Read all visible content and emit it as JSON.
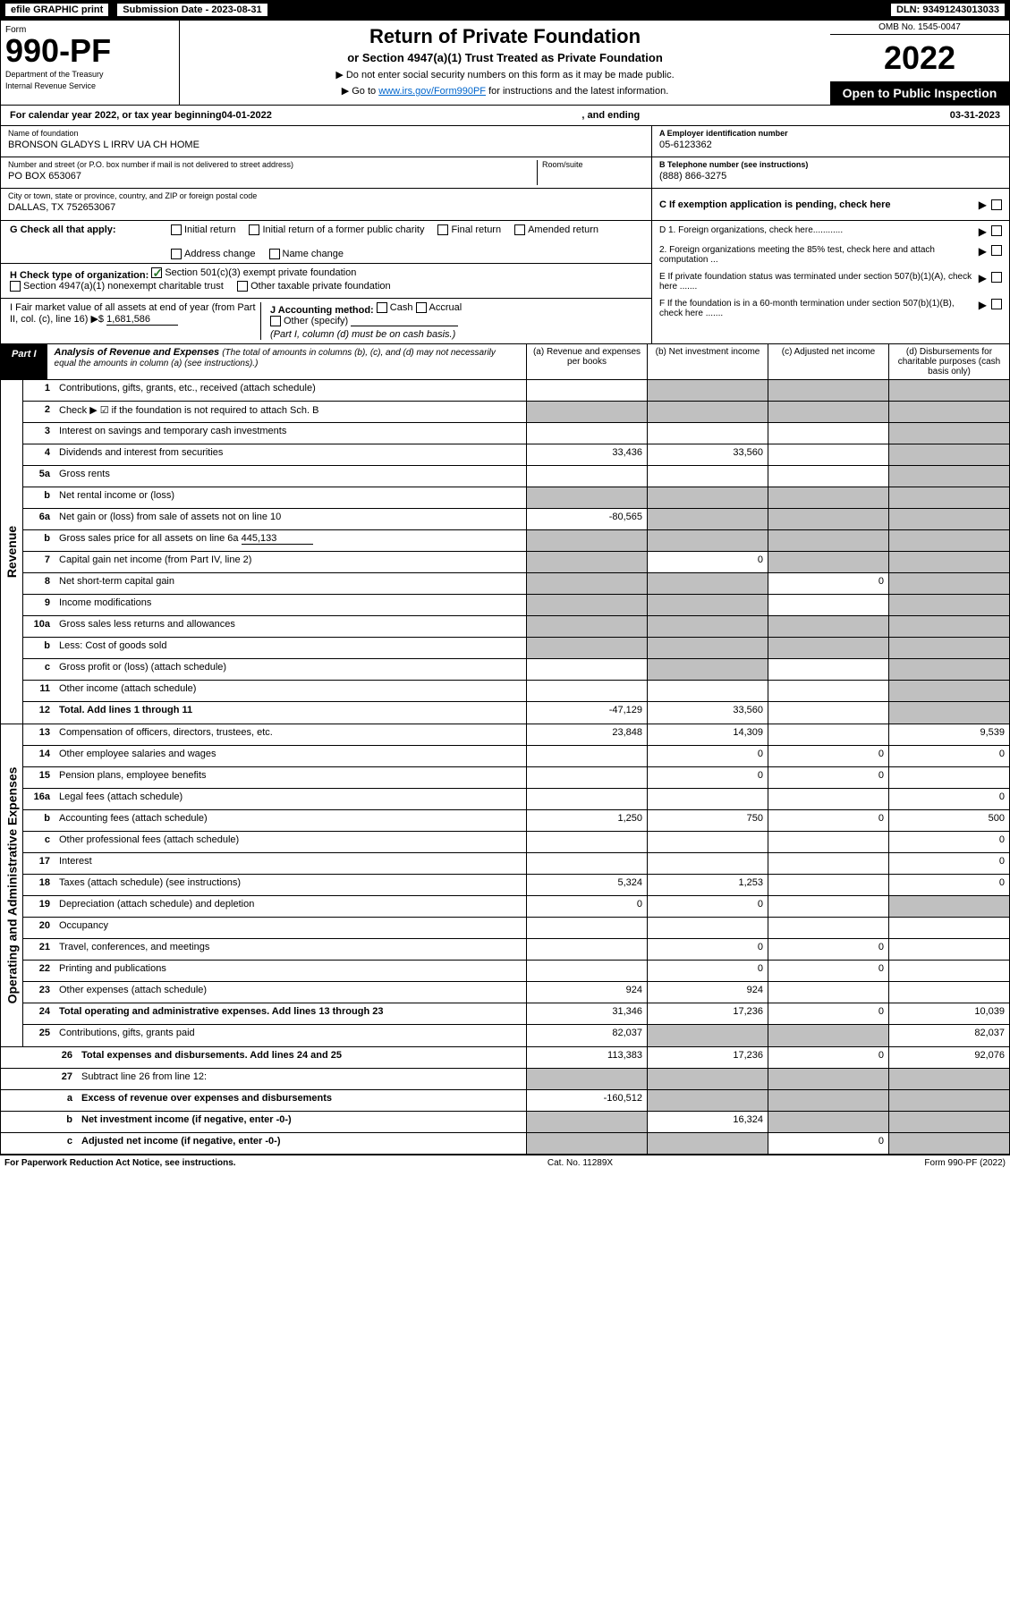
{
  "topBar": {
    "efile": "efile GRAPHIC print",
    "submission": "Submission Date - 2023-08-31",
    "dln": "DLN: 93491243013033"
  },
  "header": {
    "formLabel": "Form",
    "formNumber": "990-PF",
    "dept": "Department of the Treasury",
    "irs": "Internal Revenue Service",
    "title": "Return of Private Foundation",
    "subtitle": "or Section 4947(a)(1) Trust Treated as Private Foundation",
    "instr1": "▶ Do not enter social security numbers on this form as it may be made public.",
    "instr2": "▶ Go to ",
    "instrLink": "www.irs.gov/Form990PF",
    "instr3": " for instructions and the latest information.",
    "omb": "OMB No. 1545-0047",
    "year": "2022",
    "openPublic": "Open to Public Inspection"
  },
  "calendar": {
    "text1": "For calendar year 2022, or tax year beginning ",
    "begin": "04-01-2022",
    "text2": ", and ending ",
    "end": "03-31-2023"
  },
  "info": {
    "nameLabel": "Name of foundation",
    "name": "BRONSON GLADYS L IRRV UA CH HOME",
    "streetLabel": "Number and street (or P.O. box number if mail is not delivered to street address)",
    "street": "PO BOX 653067",
    "roomLabel": "Room/suite",
    "cityLabel": "City or town, state or province, country, and ZIP or foreign postal code",
    "city": "DALLAS, TX  752653067",
    "einLabel": "A Employer identification number",
    "ein": "05-6123362",
    "phoneLabel": "B Telephone number (see instructions)",
    "phone": "(888) 866-3275",
    "cLabel": "C If exemption application is pending, check here"
  },
  "checkG": {
    "label": "G Check all that apply:",
    "opts": [
      "Initial return",
      "Initial return of a former public charity",
      "Final return",
      "Amended return",
      "Address change",
      "Name change"
    ]
  },
  "checkH": {
    "label": "H Check type of organization:",
    "opt1": "Section 501(c)(3) exempt private foundation",
    "opt2": "Section 4947(a)(1) nonexempt charitable trust",
    "opt3": "Other taxable private foundation"
  },
  "sectionI": {
    "label": "I Fair market value of all assets at end of year (from Part II, col. (c), line 16) ▶$ ",
    "value": "1,681,586"
  },
  "sectionJ": {
    "label": "J Accounting method:",
    "cash": "Cash",
    "accrual": "Accrual",
    "other": "Other (specify)",
    "note": "(Part I, column (d) must be on cash basis.)"
  },
  "rightD": {
    "d1": "D 1. Foreign organizations, check here............",
    "d2": "2. Foreign organizations meeting the 85% test, check here and attach computation ...",
    "e": "E  If private foundation status was terminated under section 507(b)(1)(A), check here .......",
    "f": "F  If the foundation is in a 60-month termination under section 507(b)(1)(B), check here ......."
  },
  "partI": {
    "label": "Part I",
    "title": "Analysis of Revenue and Expenses",
    "subtitle": "(The total of amounts in columns (b), (c), and (d) may not necessarily equal the amounts in column (a) (see instructions).)",
    "colA": "(a) Revenue and expenses per books",
    "colB": "(b) Net investment income",
    "colC": "(c) Adjusted net income",
    "colD": "(d) Disbursements for charitable purposes (cash basis only)"
  },
  "sideLabels": {
    "revenue": "Revenue",
    "expenses": "Operating and Administrative Expenses"
  },
  "rows": [
    {
      "num": "1",
      "desc": "Contributions, gifts, grants, etc., received (attach schedule)",
      "a": "",
      "b": "grey",
      "c": "grey",
      "d": "grey"
    },
    {
      "num": "2",
      "desc": "Check ▶ ☑ if the foundation is not required to attach Sch. B",
      "bold": false,
      "a": "grey",
      "b": "grey",
      "c": "grey",
      "d": "grey"
    },
    {
      "num": "3",
      "desc": "Interest on savings and temporary cash investments",
      "a": "",
      "b": "",
      "c": "",
      "d": "grey"
    },
    {
      "num": "4",
      "desc": "Dividends and interest from securities",
      "a": "33,436",
      "b": "33,560",
      "c": "",
      "d": "grey"
    },
    {
      "num": "5a",
      "desc": "Gross rents",
      "a": "",
      "b": "",
      "c": "",
      "d": "grey"
    },
    {
      "num": "b",
      "desc": "Net rental income or (loss)",
      "a": "grey",
      "b": "grey",
      "c": "grey",
      "d": "grey"
    },
    {
      "num": "6a",
      "desc": "Net gain or (loss) from sale of assets not on line 10",
      "a": "-80,565",
      "b": "grey",
      "c": "grey",
      "d": "grey"
    },
    {
      "num": "b",
      "desc": "Gross sales price for all assets on line 6a",
      "extra": "445,133",
      "a": "grey",
      "b": "grey",
      "c": "grey",
      "d": "grey"
    },
    {
      "num": "7",
      "desc": "Capital gain net income (from Part IV, line 2)",
      "a": "grey",
      "b": "0",
      "c": "grey",
      "d": "grey"
    },
    {
      "num": "8",
      "desc": "Net short-term capital gain",
      "a": "grey",
      "b": "grey",
      "c": "0",
      "d": "grey"
    },
    {
      "num": "9",
      "desc": "Income modifications",
      "a": "grey",
      "b": "grey",
      "c": "",
      "d": "grey"
    },
    {
      "num": "10a",
      "desc": "Gross sales less returns and allowances",
      "a": "grey",
      "b": "grey",
      "c": "grey",
      "d": "grey"
    },
    {
      "num": "b",
      "desc": "Less: Cost of goods sold",
      "a": "grey",
      "b": "grey",
      "c": "grey",
      "d": "grey"
    },
    {
      "num": "c",
      "desc": "Gross profit or (loss) (attach schedule)",
      "a": "",
      "b": "grey",
      "c": "",
      "d": "grey"
    },
    {
      "num": "11",
      "desc": "Other income (attach schedule)",
      "a": "",
      "b": "",
      "c": "",
      "d": "grey"
    },
    {
      "num": "12",
      "desc": "Total. Add lines 1 through 11",
      "bold": true,
      "a": "-47,129",
      "b": "33,560",
      "c": "",
      "d": "grey"
    },
    {
      "num": "13",
      "desc": "Compensation of officers, directors, trustees, etc.",
      "a": "23,848",
      "b": "14,309",
      "c": "",
      "d": "9,539"
    },
    {
      "num": "14",
      "desc": "Other employee salaries and wages",
      "a": "",
      "b": "0",
      "c": "0",
      "d": "0"
    },
    {
      "num": "15",
      "desc": "Pension plans, employee benefits",
      "a": "",
      "b": "0",
      "c": "0",
      "d": ""
    },
    {
      "num": "16a",
      "desc": "Legal fees (attach schedule)",
      "a": "",
      "b": "",
      "c": "",
      "d": "0"
    },
    {
      "num": "b",
      "desc": "Accounting fees (attach schedule)",
      "a": "1,250",
      "b": "750",
      "c": "0",
      "d": "500"
    },
    {
      "num": "c",
      "desc": "Other professional fees (attach schedule)",
      "a": "",
      "b": "",
      "c": "",
      "d": "0"
    },
    {
      "num": "17",
      "desc": "Interest",
      "a": "",
      "b": "",
      "c": "",
      "d": "0"
    },
    {
      "num": "18",
      "desc": "Taxes (attach schedule) (see instructions)",
      "a": "5,324",
      "b": "1,253",
      "c": "",
      "d": "0"
    },
    {
      "num": "19",
      "desc": "Depreciation (attach schedule) and depletion",
      "a": "0",
      "b": "0",
      "c": "",
      "d": "grey"
    },
    {
      "num": "20",
      "desc": "Occupancy",
      "a": "",
      "b": "",
      "c": "",
      "d": ""
    },
    {
      "num": "21",
      "desc": "Travel, conferences, and meetings",
      "a": "",
      "b": "0",
      "c": "0",
      "d": ""
    },
    {
      "num": "22",
      "desc": "Printing and publications",
      "a": "",
      "b": "0",
      "c": "0",
      "d": ""
    },
    {
      "num": "23",
      "desc": "Other expenses (attach schedule)",
      "a": "924",
      "b": "924",
      "c": "",
      "d": ""
    },
    {
      "num": "24",
      "desc": "Total operating and administrative expenses. Add lines 13 through 23",
      "bold": true,
      "a": "31,346",
      "b": "17,236",
      "c": "0",
      "d": "10,039"
    },
    {
      "num": "25",
      "desc": "Contributions, gifts, grants paid",
      "a": "82,037",
      "b": "grey",
      "c": "grey",
      "d": "82,037"
    },
    {
      "num": "26",
      "desc": "Total expenses and disbursements. Add lines 24 and 25",
      "bold": true,
      "a": "113,383",
      "b": "17,236",
      "c": "0",
      "d": "92,076"
    },
    {
      "num": "27",
      "desc": "Subtract line 26 from line 12:",
      "a": "grey",
      "b": "grey",
      "c": "grey",
      "d": "grey"
    },
    {
      "num": "a",
      "desc": "Excess of revenue over expenses and disbursements",
      "bold": true,
      "a": "-160,512",
      "b": "grey",
      "c": "grey",
      "d": "grey"
    },
    {
      "num": "b",
      "desc": "Net investment income (if negative, enter -0-)",
      "bold": true,
      "a": "grey",
      "b": "16,324",
      "c": "grey",
      "d": "grey"
    },
    {
      "num": "c",
      "desc": "Adjusted net income (if negative, enter -0-)",
      "bold": true,
      "a": "grey",
      "b": "grey",
      "c": "0",
      "d": "grey"
    }
  ],
  "footer": {
    "left": "For Paperwork Reduction Act Notice, see instructions.",
    "center": "Cat. No. 11289X",
    "right": "Form 990-PF (2022)"
  }
}
